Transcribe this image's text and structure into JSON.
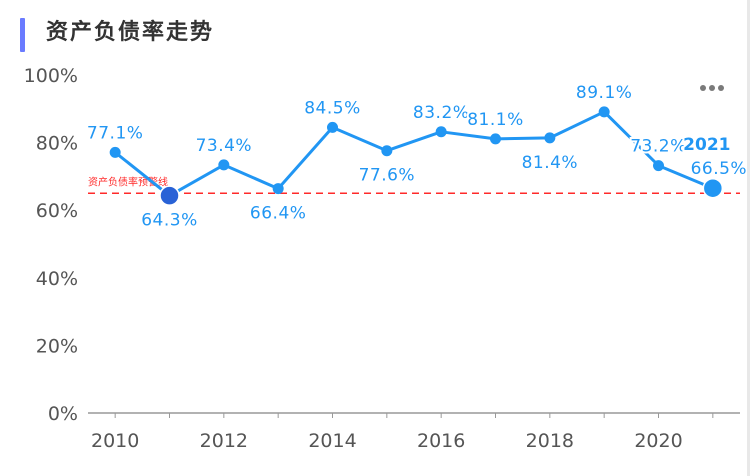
{
  "header": {
    "title": "资产负债率走势"
  },
  "more_icon": "more-dots-icon",
  "colors": {
    "series": "#2196f3",
    "label": "#2196f3",
    "highlight": "#2962d6",
    "threshold": "#ff2a2a",
    "axis": "#999999",
    "tick_text": "#555555",
    "title_bar": "#6a7bff"
  },
  "chart_data": {
    "type": "line",
    "title": "资产负债率走势",
    "x": [
      2010,
      2011,
      2012,
      2013,
      2014,
      2015,
      2016,
      2017,
      2018,
      2019,
      2020,
      2021
    ],
    "series": [
      {
        "values": [
          77.1,
          64.3,
          73.4,
          66.4,
          84.5,
          77.6,
          83.2,
          81.1,
          81.4,
          89.1,
          73.2,
          66.5
        ],
        "labels": [
          "77.1%",
          "64.3%",
          "73.4%",
          "66.4%",
          "84.5%",
          "77.6%",
          "83.2%",
          "81.1%",
          "81.4%",
          "89.1%",
          "73.2%",
          "66.5%"
        ]
      }
    ],
    "highlight_points": [
      2011,
      2021
    ],
    "highlight_label": "2021",
    "threshold": {
      "value": 65,
      "label": "资产负债率预警线"
    },
    "x_ticks": [
      "2010",
      "2012",
      "2014",
      "2016",
      "2018",
      "2020"
    ],
    "x_tick_values": [
      2010,
      2012,
      2014,
      2016,
      2018,
      2020
    ],
    "y_ticks": [
      "0%",
      "20%",
      "40%",
      "60%",
      "80%",
      "100%"
    ],
    "y_tick_values": [
      0,
      20,
      40,
      60,
      80,
      100
    ],
    "xlim": [
      2009.5,
      2021.5
    ],
    "ylim": [
      0,
      100
    ],
    "grid": false,
    "legend": "none"
  }
}
